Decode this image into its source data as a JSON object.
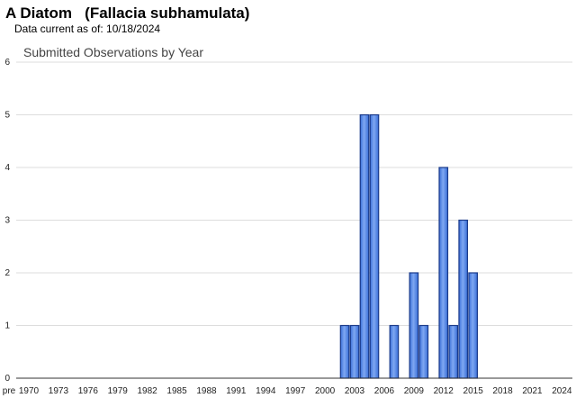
{
  "header": {
    "title": "A Diatom   (Fallacia subhamulata)",
    "data_current": "Data current as of: 10/18/2024"
  },
  "colors": {
    "bar_fill_light": "#7fa8f2",
    "bar_fill_dark": "#3a6fd8",
    "bar_stroke": "#1a3a8a"
  },
  "chart_data": {
    "type": "bar",
    "title": "Submitted Observations by Year",
    "xlabel": "",
    "ylabel": "",
    "ylim": [
      0,
      6
    ],
    "yticks": [
      0,
      1,
      2,
      3,
      4,
      5,
      6
    ],
    "grid": true,
    "legend": "none",
    "categories": [
      "pre 1970",
      "1970",
      "1971",
      "1972",
      "1973",
      "1974",
      "1975",
      "1976",
      "1977",
      "1978",
      "1979",
      "1980",
      "1981",
      "1982",
      "1983",
      "1984",
      "1985",
      "1986",
      "1987",
      "1988",
      "1989",
      "1990",
      "1991",
      "1992",
      "1993",
      "1994",
      "1995",
      "1996",
      "1997",
      "1998",
      "1999",
      "2000",
      "2001",
      "2002",
      "2003",
      "2004",
      "2005",
      "2006",
      "2007",
      "2008",
      "2009",
      "2010",
      "2011",
      "2012",
      "2013",
      "2014",
      "2015",
      "2016",
      "2017",
      "2018",
      "2019",
      "2020",
      "2021",
      "2022",
      "2023",
      "2024"
    ],
    "x_tick_labels": [
      "pre",
      "1970",
      "1973",
      "1976",
      "1979",
      "1982",
      "1985",
      "1988",
      "1991",
      "1994",
      "1997",
      "2000",
      "2003",
      "2006",
      "2009",
      "2012",
      "2015",
      "2018",
      "2021",
      "2024"
    ],
    "values": [
      0,
      0,
      0,
      0,
      0,
      0,
      0,
      0,
      0,
      0,
      0,
      0,
      0,
      0,
      0,
      0,
      0,
      0,
      0,
      0,
      0,
      0,
      0,
      0,
      0,
      0,
      0,
      0,
      0,
      0,
      0,
      0,
      0,
      1,
      1,
      5,
      5,
      0,
      1,
      0,
      2,
      1,
      0,
      4,
      1,
      3,
      2,
      0,
      0,
      0,
      0,
      0,
      0,
      0,
      0,
      0
    ]
  }
}
